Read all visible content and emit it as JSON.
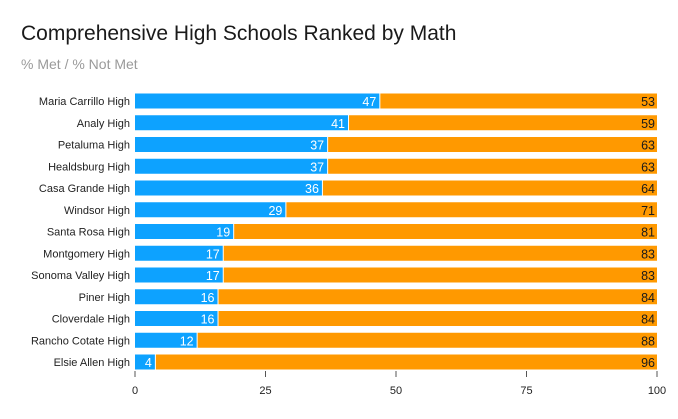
{
  "chart_data": {
    "type": "bar",
    "orientation": "horizontal",
    "stacked": true,
    "title": "Comprehensive High Schools Ranked by Math",
    "subtitle": "% Met / % Not Met",
    "categories": [
      "Maria Carrillo High",
      "Analy High",
      "Petaluma High",
      "Healdsburg High",
      "Casa Grande High",
      "Windsor High",
      "Santa Rosa High",
      "Montgomery High",
      "Sonoma Valley High",
      "Piner High",
      "Cloverdale High",
      "Rancho Cotate High",
      "Elsie Allen High"
    ],
    "series": [
      {
        "name": "% Met",
        "color": "#0da2ff",
        "label_color": "#ffffff",
        "values": [
          47,
          41,
          37,
          37,
          36,
          29,
          19,
          17,
          17,
          16,
          16,
          12,
          4
        ]
      },
      {
        "name": "% Not Met",
        "color": "#ff9900",
        "label_color": "#1a1a1a",
        "values": [
          53,
          59,
          63,
          63,
          64,
          71,
          81,
          83,
          83,
          84,
          84,
          88,
          96
        ]
      }
    ],
    "xlim": [
      0,
      100
    ],
    "xticks": [
      "0",
      "25",
      "50",
      "75",
      "100"
    ],
    "xlabel": "",
    "ylabel": "",
    "legend": "none"
  }
}
